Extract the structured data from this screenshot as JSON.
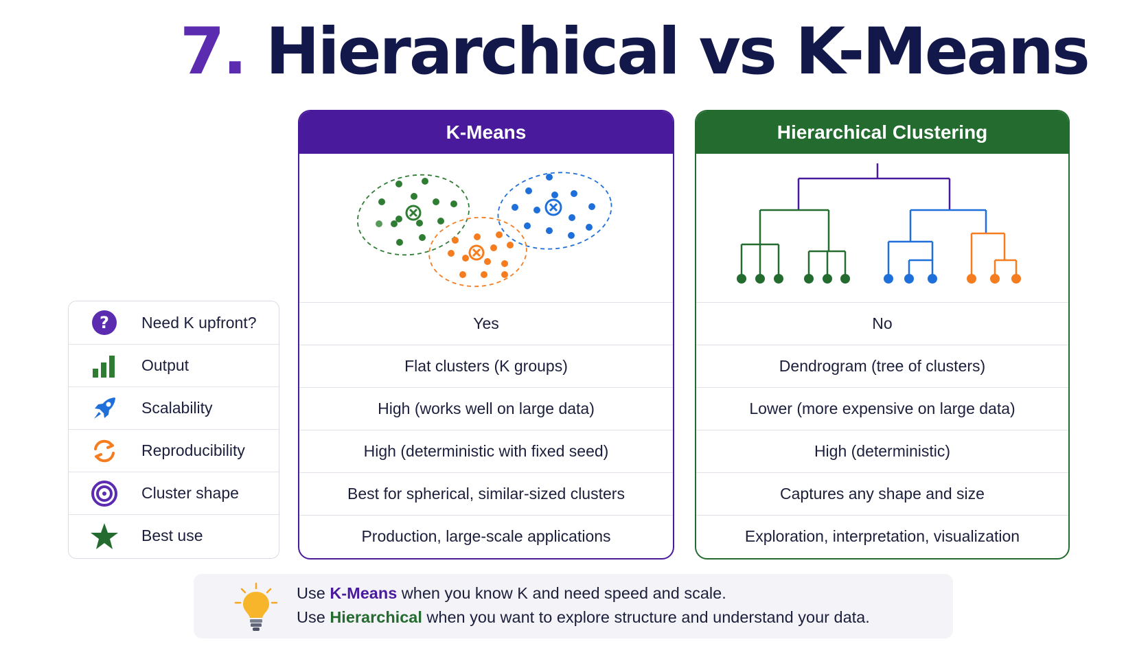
{
  "title": {
    "number": "7.",
    "text": "Hierarchical vs K-Means"
  },
  "criteria": [
    {
      "label": "Need K upfront?",
      "icon": "question-circle-icon"
    },
    {
      "label": "Output",
      "icon": "bar-chart-icon"
    },
    {
      "label": "Scalability",
      "icon": "rocket-icon"
    },
    {
      "label": "Reproducibility",
      "icon": "refresh-arrows-icon"
    },
    {
      "label": "Cluster shape",
      "icon": "target-icon"
    },
    {
      "label": "Best use",
      "icon": "star-icon"
    }
  ],
  "kmeans": {
    "title": "K-Means",
    "illustration": "cluster-scatter-icon",
    "cells": [
      "Yes",
      "Flat clusters (K groups)",
      "High (works well on large data)",
      "High (deterministic with fixed seed)",
      "Best for spherical, similar-sized clusters",
      "Production, large-scale applications"
    ]
  },
  "hierarchical": {
    "title": "Hierarchical Clustering",
    "illustration": "dendrogram-icon",
    "cells": [
      "No",
      "Dendrogram (tree of clusters)",
      "Lower (more expensive on large data)",
      "High (deterministic)",
      "Captures any shape and size",
      "Exploration, interpretation,  visualization"
    ]
  },
  "tip": {
    "icon": "lightbulb-icon",
    "line1_prefix": "Use ",
    "line1_highlight": "K-Means",
    "line1_suffix": " when you know K and need speed and scale.",
    "line2_prefix": "Use ",
    "line2_highlight": "Hierarchical",
    "line2_suffix": " when you want to explore structure and understand your data."
  },
  "colors": {
    "kmeans_accent": "#4a1a9c",
    "hierarchical_accent": "#236b2e",
    "title": "#12194a",
    "title_number": "#5b2bb0",
    "cluster_green": "#2e7d32",
    "cluster_blue": "#1e6fd9",
    "cluster_orange": "#f57c1f"
  }
}
